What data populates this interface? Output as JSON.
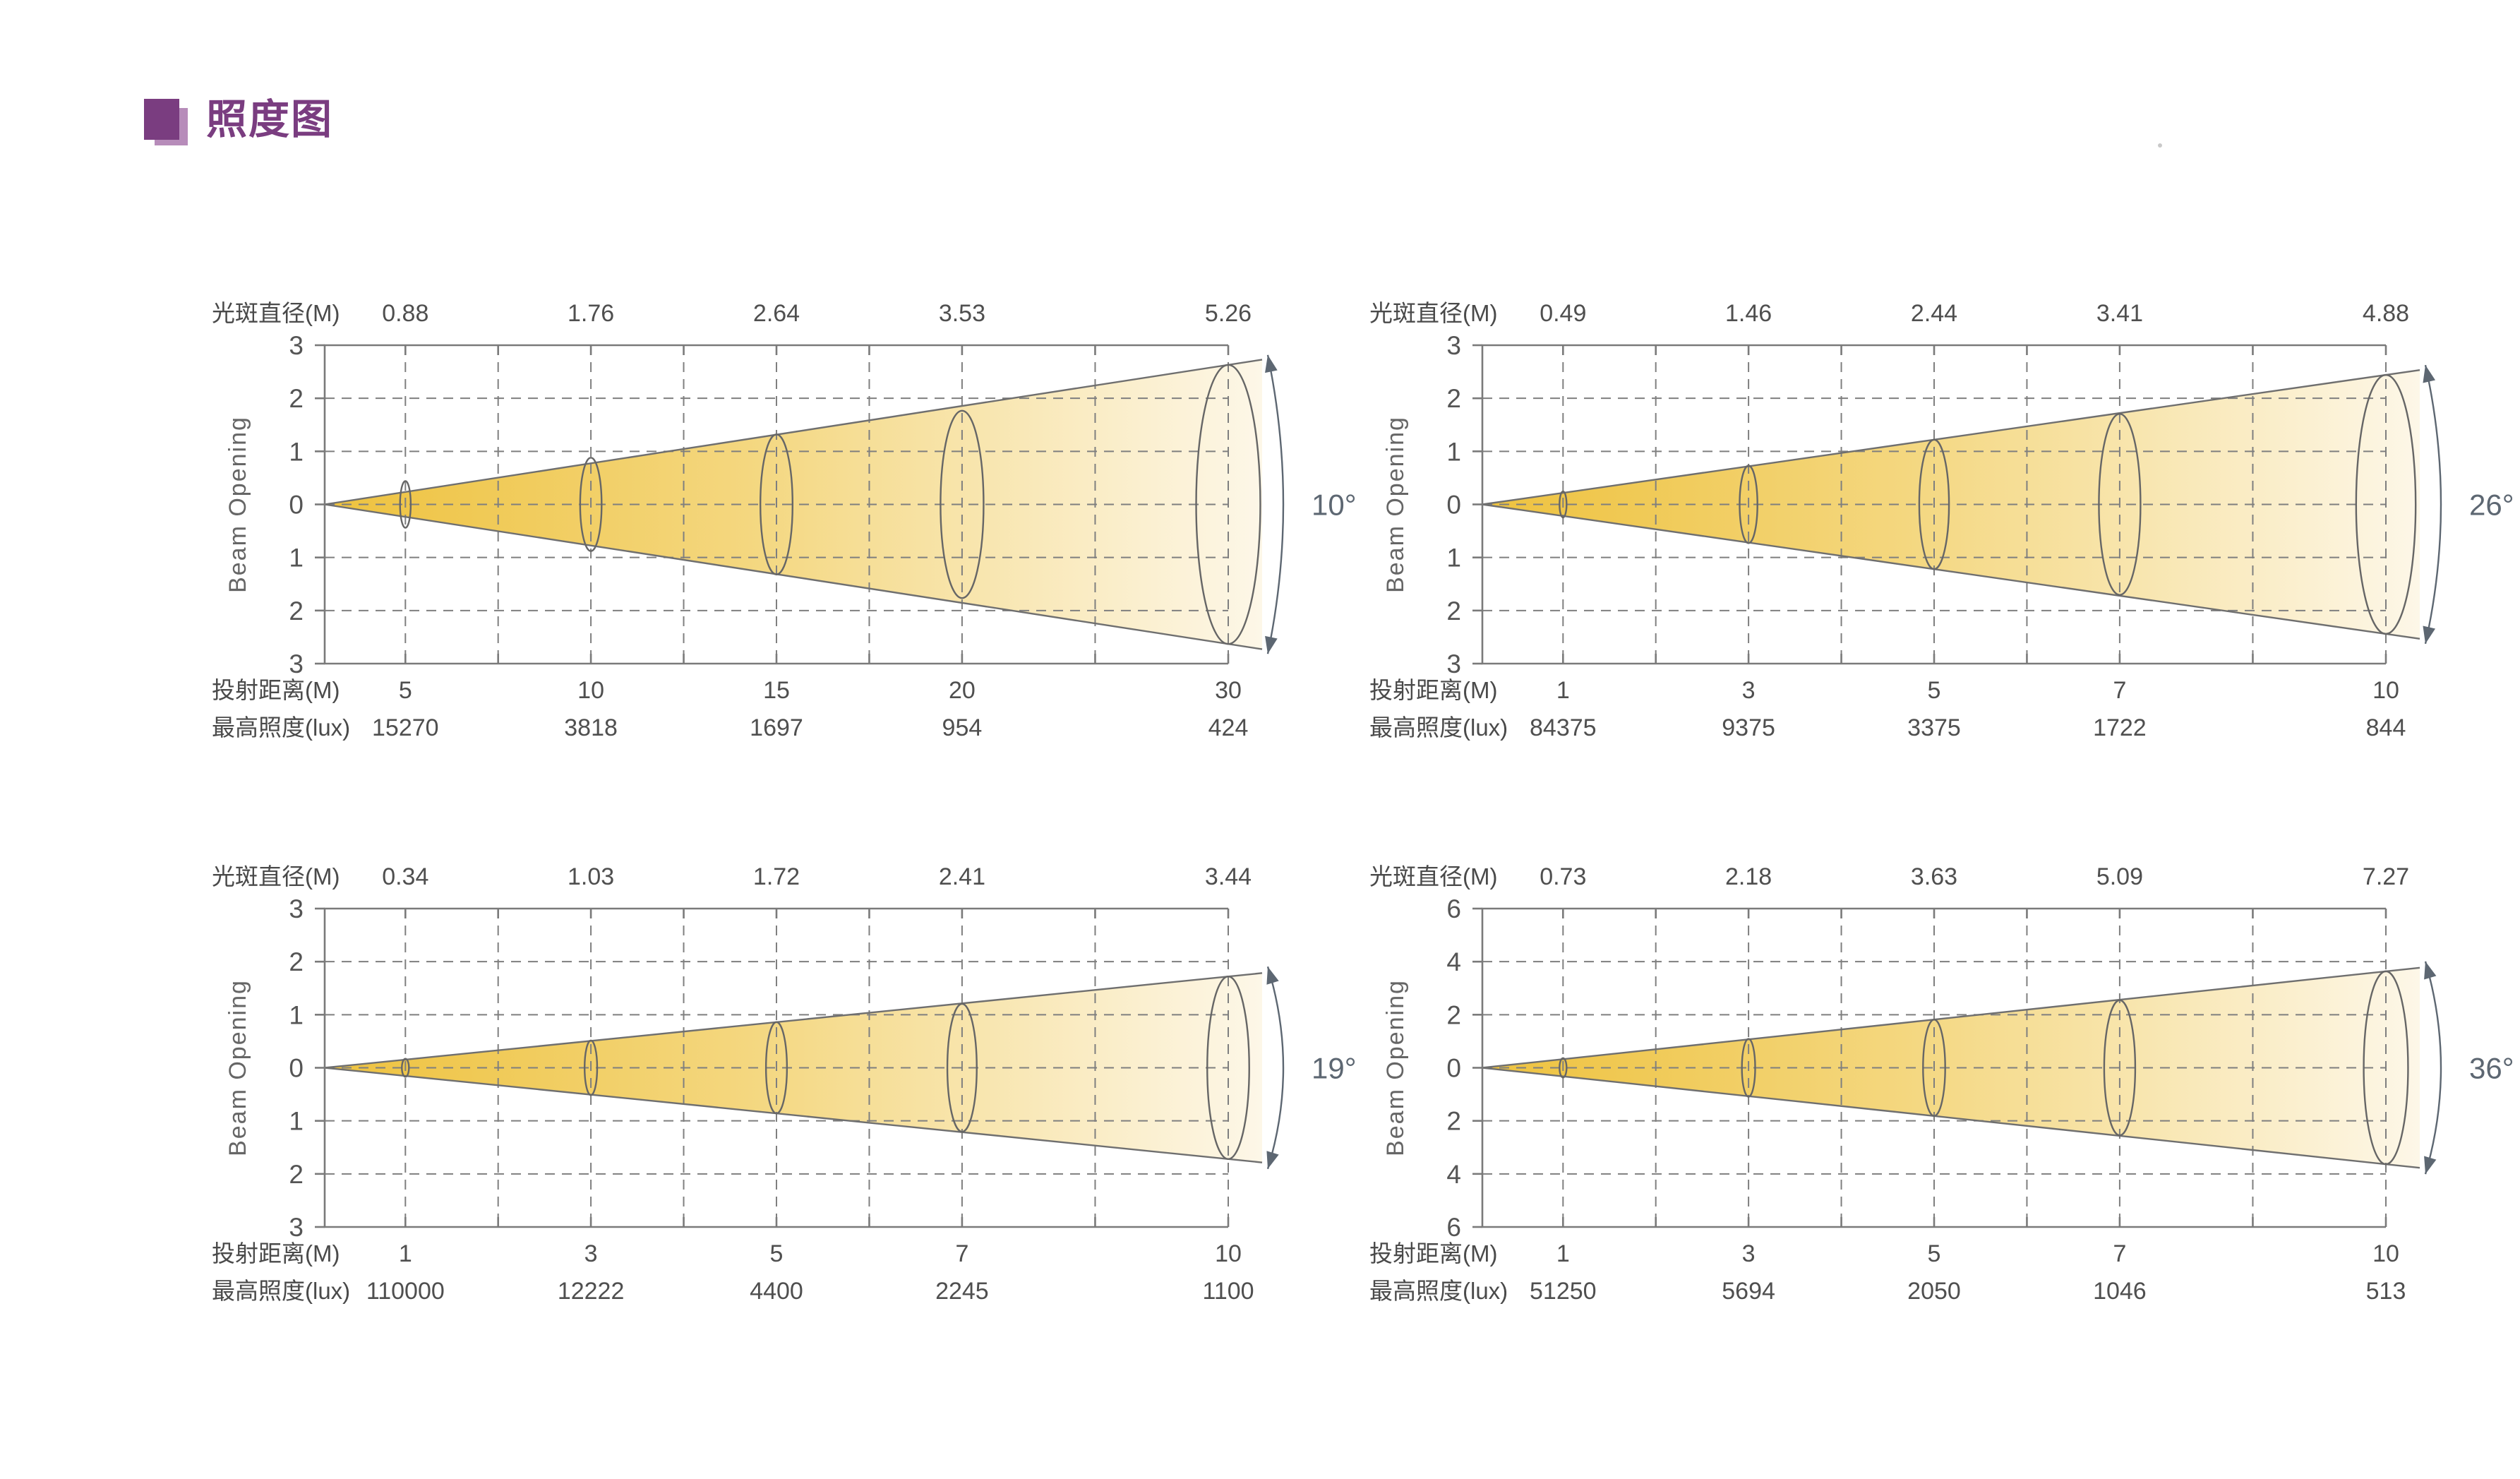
{
  "title": "照度图",
  "labels": {
    "diameter": "光斑直径(M)",
    "distance": "投射距离(M)",
    "lux": "最高照度(lux)",
    "beam_opening": "Beam Opening"
  },
  "colors": {
    "accent_purple": "#7a3d80",
    "accent_purple_light": "#b78cba",
    "cone_start": "#eec23e",
    "cone_mid": "#f4d77f",
    "cone_end": "#fdf7e8",
    "axis": "#7a7a7a",
    "grid": "#7f7f7f",
    "outline": "#6f6f6f",
    "ellipse": "#666666",
    "text": "#4f4f4f",
    "label_text": "#4a4a4a",
    "angle_text": "#5d6772"
  },
  "chart_data": [
    {
      "type": "beam_cone",
      "beam_angle": "10°",
      "y_axis_label": "Beam Opening",
      "y_tick_labels": [
        "3",
        "2",
        "1",
        "0",
        "1",
        "2",
        "3"
      ],
      "y_max": 3,
      "spot_diameter_m": [
        0.88,
        1.76,
        2.64,
        3.53,
        5.26
      ],
      "throw_distance_m": [
        5,
        10,
        15,
        20,
        30
      ],
      "max_illuminance_lux": [
        15270,
        3818,
        1697,
        954,
        424
      ]
    },
    {
      "type": "beam_cone",
      "beam_angle": "26°",
      "y_axis_label": "Beam Opening",
      "y_tick_labels": [
        "3",
        "2",
        "1",
        "0",
        "1",
        "2",
        "3"
      ],
      "y_max": 3,
      "spot_diameter_m": [
        0.49,
        1.46,
        2.44,
        3.41,
        4.88
      ],
      "throw_distance_m": [
        1,
        3,
        5,
        7,
        10
      ],
      "max_illuminance_lux": [
        84375,
        9375,
        3375,
        1722,
        844
      ]
    },
    {
      "type": "beam_cone",
      "beam_angle": "19°",
      "y_axis_label": "Beam Opening",
      "y_tick_labels": [
        "3",
        "2",
        "1",
        "0",
        "1",
        "2",
        "3"
      ],
      "y_max": 3,
      "spot_diameter_m": [
        0.34,
        1.03,
        1.72,
        2.41,
        3.44
      ],
      "throw_distance_m": [
        1,
        3,
        5,
        7,
        10
      ],
      "max_illuminance_lux": [
        110000,
        12222,
        4400,
        2245,
        1100
      ]
    },
    {
      "type": "beam_cone",
      "beam_angle": "36°",
      "y_axis_label": "Beam Opening",
      "y_tick_labels": [
        "6",
        "4",
        "2",
        "0",
        "2",
        "4",
        "6"
      ],
      "y_max": 6,
      "spot_diameter_m": [
        0.73,
        2.18,
        3.63,
        5.09,
        7.27
      ],
      "throw_distance_m": [
        1,
        3,
        5,
        7,
        10
      ],
      "max_illuminance_lux": [
        51250,
        5694,
        2050,
        1046,
        513
      ]
    }
  ]
}
